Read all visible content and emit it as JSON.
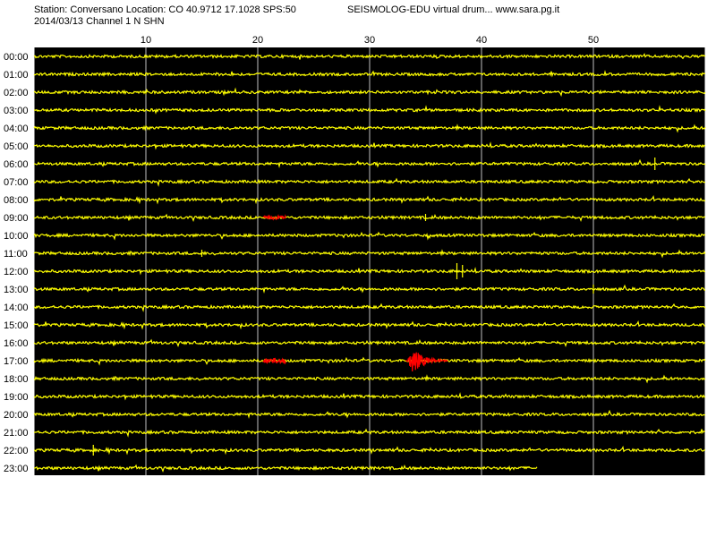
{
  "header": {
    "station_line": "Station: Conversano Location: CO 40.9712 17.1028 SPS:50",
    "date_line": "2014/03/13  Channel 1 N SHN",
    "source_line": "SEISMOLOG-EDU virtual drum... www.sara.pg.it"
  },
  "chart_data": {
    "type": "line",
    "title": "",
    "xlabel": "",
    "ylabel": "",
    "x_unit_range": [
      0,
      60
    ],
    "x_ticks": [
      10,
      20,
      30,
      40,
      50
    ],
    "x_tick_labels": [
      "10",
      "20",
      "30",
      "40",
      "50"
    ],
    "grid": true,
    "colors": {
      "background": "#000000",
      "trace": "#ffff00",
      "event": "#ff0000",
      "grid": "#c0c0c0",
      "frame": "#ffffff"
    },
    "hours": [
      "00:00",
      "01:00",
      "02:00",
      "03:00",
      "04:00",
      "05:00",
      "06:00",
      "07:00",
      "08:00",
      "09:00",
      "10:00",
      "11:00",
      "12:00",
      "13:00",
      "14:00",
      "15:00",
      "16:00",
      "17:00",
      "18:00",
      "19:00",
      "20:00",
      "21:00",
      "22:00",
      "23:00"
    ],
    "last_trace_end_minute": 45,
    "noise_amplitude": 1.5,
    "spikes": [
      {
        "hour": 6,
        "minute": 55.5,
        "amp": 7
      },
      {
        "hour": 9,
        "minute": 35.0,
        "amp": 4
      },
      {
        "hour": 11,
        "minute": 15.0,
        "amp": 4
      },
      {
        "hour": 12,
        "minute": 37.8,
        "amp": 9
      },
      {
        "hour": 12,
        "minute": 38.3,
        "amp": 7
      },
      {
        "hour": 13,
        "minute": 50.0,
        "amp": 5
      },
      {
        "hour": 22,
        "minute": 5.3,
        "amp": 6
      }
    ],
    "events": [
      {
        "hour": 9,
        "start_minute": 20.5,
        "end_minute": 22.5,
        "amp": 3,
        "kind": "mark"
      },
      {
        "hour": 17,
        "start_minute": 20.5,
        "end_minute": 22.5,
        "amp": 4,
        "kind": "mark"
      },
      {
        "hour": 17,
        "start_minute": 33.3,
        "end_minute": 37.0,
        "amp": 14,
        "kind": "quake"
      }
    ]
  }
}
